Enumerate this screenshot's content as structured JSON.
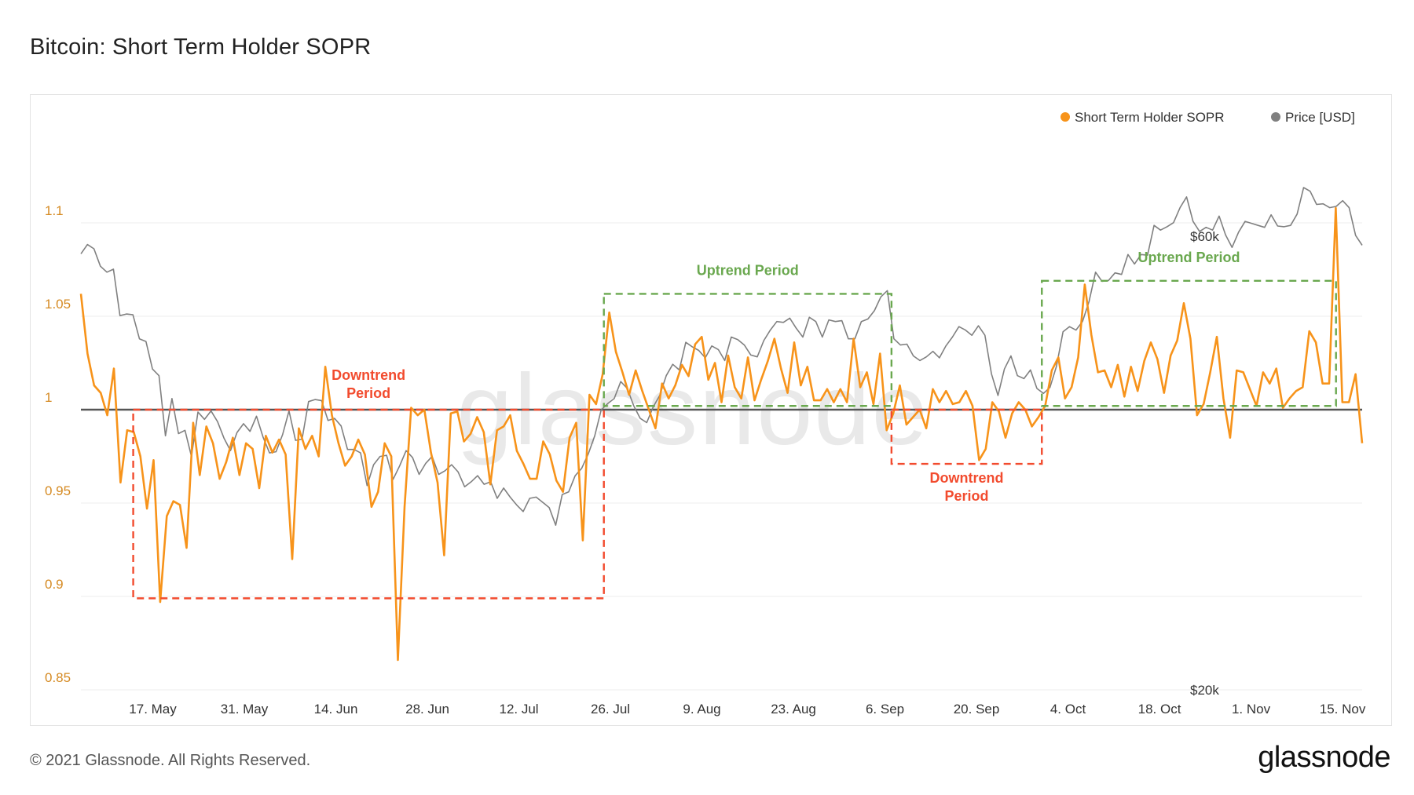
{
  "title": "Bitcoin: Short Term Holder SOPR",
  "footer": {
    "copyright": "© 2021 Glassnode. All Rights Reserved.",
    "logo": "glassnode"
  },
  "watermark": "glassnode",
  "colors": {
    "sopr": "#f7931a",
    "price": "#808080",
    "downtrend": "#f24b2e",
    "uptrend": "#6aa84f",
    "baseline": "#555555",
    "grid": "#eeeeee",
    "left_axis_text": "#d58a22"
  },
  "chart_data": {
    "type": "line",
    "x_range": [
      "2021-05-06",
      "2021-11-18"
    ],
    "xticks": [
      "17. May",
      "31. May",
      "14. Jun",
      "28. Jun",
      "12. Jul",
      "26. Jul",
      "9. Aug",
      "23. Aug",
      "6. Sep",
      "20. Sep",
      "4. Oct",
      "18. Oct",
      "1. Nov",
      "15. Nov"
    ],
    "y_left": {
      "label": "Short Term Holder SOPR",
      "ylim": [
        0.85,
        1.15
      ],
      "ticks": [
        "0.85",
        "0.9",
        "0.95",
        "1",
        "1.05",
        "1.1"
      ]
    },
    "y_right": {
      "label": "Price [USD]",
      "scale": "log",
      "ticks": [
        "$20k",
        "$60k"
      ]
    },
    "legend": [
      "Short Term Holder SOPR",
      "Price [USD]"
    ],
    "legend_position": "top-right",
    "reference_line": 1.0,
    "series": [
      {
        "name": "Short Term Holder SOPR",
        "axis": "left",
        "values": [
          1.062,
          1.03,
          1.013,
          1.009,
          0.997,
          1.022,
          0.961,
          0.989,
          0.988,
          0.975,
          0.947,
          0.973,
          0.897,
          0.943,
          0.951,
          0.949,
          0.926,
          0.993,
          0.965,
          0.991,
          0.982,
          0.963,
          0.972,
          0.985,
          0.965,
          0.982,
          0.979,
          0.958,
          0.986,
          0.977,
          0.984,
          0.976,
          0.92,
          0.99,
          0.979,
          0.986,
          0.975,
          1.023,
          0.997,
          0.982,
          0.97,
          0.975,
          0.984,
          0.976,
          0.948,
          0.956,
          0.982,
          0.975,
          0.866,
          0.948,
          1.001,
          0.997,
          1.0,
          0.977,
          0.961,
          0.922,
          0.998,
          0.999,
          0.983,
          0.987,
          0.996,
          0.988,
          0.96,
          0.989,
          0.991,
          0.997,
          0.978,
          0.971,
          0.963,
          0.963,
          0.983,
          0.976,
          0.962,
          0.956,
          0.985,
          0.993,
          0.93,
          1.008,
          1.003,
          1.019,
          1.052,
          1.031,
          1.02,
          1.008,
          1.021,
          1.01,
          1.0,
          0.99,
          1.014,
          1.006,
          1.013,
          1.024,
          1.018,
          1.035,
          1.039,
          1.016,
          1.025,
          1.004,
          1.029,
          1.012,
          1.006,
          1.028,
          1.005,
          1.016,
          1.026,
          1.038,
          1.022,
          1.009,
          1.036,
          1.013,
          1.023,
          1.005,
          1.005,
          1.011,
          1.004,
          1.011,
          1.004,
          1.038,
          1.012,
          1.02,
          1.003,
          1.03,
          0.989,
          0.998,
          1.013,
          0.992,
          0.996,
          1.0,
          0.99,
          1.011,
          1.004,
          1.01,
          1.003,
          1.004,
          1.01,
          1.002,
          0.973,
          0.979,
          1.004,
          0.999,
          0.985,
          0.998,
          1.004,
          1.0,
          0.991,
          0.996,
          1.002,
          1.021,
          1.028,
          1.006,
          1.012,
          1.028,
          1.067,
          1.04,
          1.02,
          1.021,
          1.012,
          1.024,
          1.007,
          1.023,
          1.01,
          1.026,
          1.036,
          1.027,
          1.009,
          1.029,
          1.037,
          1.057,
          1.038,
          0.997,
          1.003,
          1.02,
          1.039,
          1.006,
          0.985,
          1.021,
          1.02,
          1.011,
          1.002,
          1.02,
          1.014,
          1.022,
          1.001,
          1.006,
          1.01,
          1.012,
          1.042,
          1.036,
          1.014,
          1.014,
          1.108,
          1.004,
          1.004,
          1.019,
          0.982
        ]
      },
      {
        "name": "Price [USD]",
        "axis": "right",
        "values": [
          57500,
          58800,
          58200,
          55800,
          55000,
          55400,
          49500,
          49700,
          49600,
          46800,
          46500,
          43500,
          42800,
          37000,
          40500,
          37200,
          37500,
          35200,
          39200,
          38500,
          39300,
          38300,
          36800,
          35700,
          37300,
          38100,
          37400,
          38800,
          36900,
          35500,
          35600,
          37100,
          39300,
          36600,
          36700,
          40200,
          40400,
          40300,
          38400,
          38600,
          37900,
          35800,
          35800,
          35500,
          32800,
          34500,
          35200,
          35300,
          33300,
          34400,
          35700,
          35100,
          33700,
          34600,
          35200,
          33700,
          34000,
          34500,
          33900,
          32700,
          33100,
          33600,
          32900,
          33100,
          31800,
          32600,
          31900,
          31300,
          30800,
          31800,
          31900,
          31500,
          31100,
          29800,
          32100,
          32300,
          33600,
          34200,
          35400,
          37000,
          39400,
          40000,
          40500,
          42200,
          41500,
          39800,
          38600,
          38200,
          39700,
          40800,
          42800,
          44000,
          43400,
          46400,
          45900,
          45500,
          44700,
          46000,
          45600,
          44400,
          47000,
          46700,
          46100,
          45000,
          44800,
          46600,
          47800,
          48800,
          48700,
          49200,
          48000,
          47000,
          49300,
          48800,
          47000,
          49000,
          48800,
          48900,
          46800,
          46800,
          48800,
          49100,
          50100,
          51800,
          52600,
          46800,
          46100,
          46200,
          44900,
          44400,
          44800,
          45400,
          44700,
          46000,
          47000,
          48200,
          47800,
          47200,
          48300,
          47200,
          43000,
          40800,
          43500,
          44900,
          42800,
          42500,
          43400,
          41500,
          41000,
          41600,
          43800,
          47600,
          48200,
          47800,
          48800,
          51200,
          55000,
          53800,
          53900,
          54900,
          54700,
          57400,
          56100,
          57400,
          57300,
          61600,
          60900,
          61400,
          62000,
          64300,
          66000,
          62200,
          60700,
          61300,
          60900,
          63000,
          60200,
          58400,
          60600,
          62200,
          61900,
          61600,
          61300,
          63200,
          61500,
          61400,
          61600,
          63300,
          67500,
          66900,
          64800,
          64900,
          64300,
          64500,
          65400,
          64300,
          60100,
          58700
        ]
      }
    ],
    "annotations": [
      {
        "label": "Downtrend Period",
        "lines": [
          "Downtrend",
          "Period"
        ],
        "kind": "downtrend",
        "start": "2021-05-14",
        "end": "2021-07-25",
        "ymin": 0.899,
        "ymax": 1.0
      },
      {
        "label": "Uptrend Period",
        "lines": [
          "Uptrend Period"
        ],
        "kind": "uptrend",
        "start": "2021-07-25",
        "end": "2021-09-07",
        "ymin": 1.002,
        "ymax": 1.062
      },
      {
        "label": "Downtrend Period",
        "lines": [
          "Downtrend",
          "Period"
        ],
        "kind": "downtrend",
        "start": "2021-09-07",
        "end": "2021-09-30",
        "ymin": 0.971,
        "ymax": 1.0
      },
      {
        "label": "Uptrend Period",
        "lines": [
          "Uptrend Period"
        ],
        "kind": "uptrend",
        "start": "2021-09-30",
        "end": "2021-11-14",
        "ymin": 1.002,
        "ymax": 1.069
      }
    ]
  }
}
